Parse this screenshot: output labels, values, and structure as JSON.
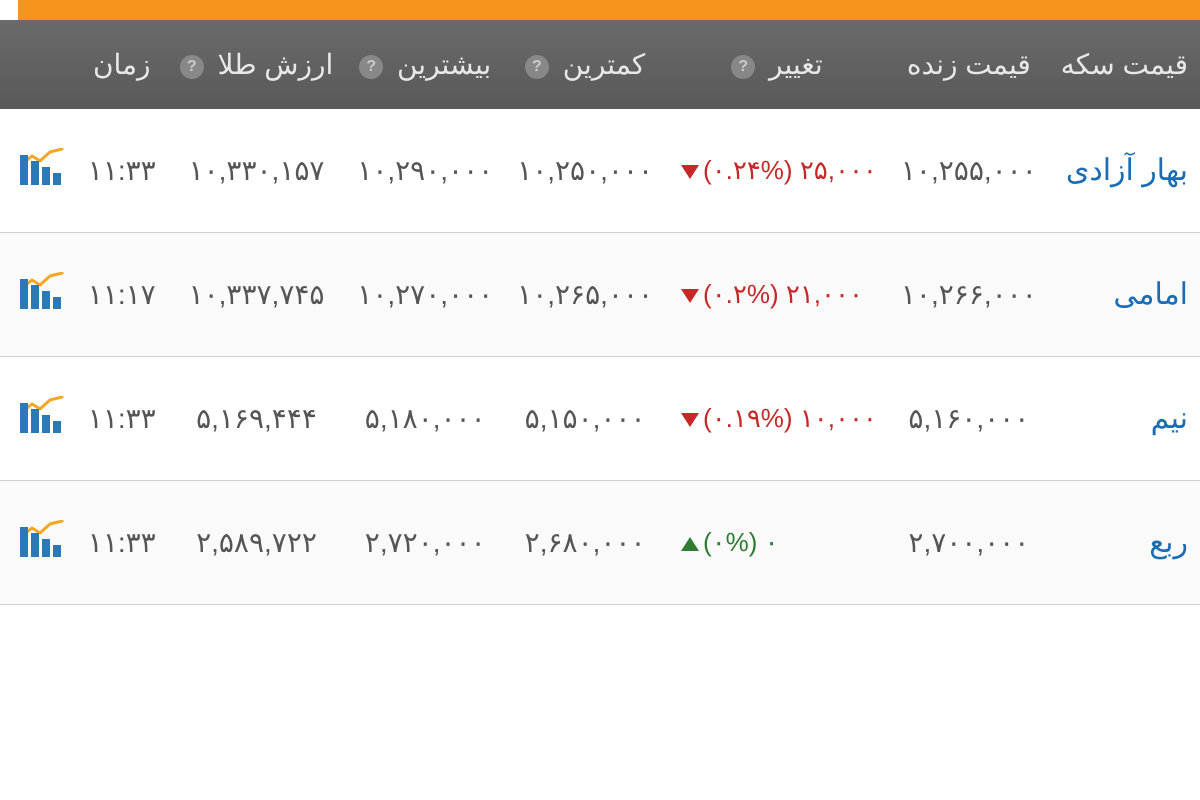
{
  "table": {
    "headers": {
      "name": "قیمت سکه",
      "live_price": "قیمت زنده",
      "change": "تغییر",
      "low": "کمترین",
      "high": "بیشترین",
      "gold_value": "ارزش طلا",
      "time": "زمان"
    },
    "rows": [
      {
        "name": "بهار آزادی",
        "live_price": "۱۰,۲۵۵,۰۰۰",
        "change_amount": "۲۵,۰۰۰",
        "change_percent": "(۰.۲۴%)",
        "direction": "down",
        "low": "۱۰,۲۵۰,۰۰۰",
        "high": "۱۰,۲۹۰,۰۰۰",
        "gold_value": "۱۰,۳۳۰,۱۵۷",
        "time": "۱۱:۳۳"
      },
      {
        "name": "امامی",
        "live_price": "۱۰,۲۶۶,۰۰۰",
        "change_amount": "۲۱,۰۰۰",
        "change_percent": "(۰.۲%)",
        "direction": "down",
        "low": "۱۰,۲۶۵,۰۰۰",
        "high": "۱۰,۲۷۰,۰۰۰",
        "gold_value": "۱۰,۳۳۷,۷۴۵",
        "time": "۱۱:۱۷"
      },
      {
        "name": "نیم",
        "live_price": "۵,۱۶۰,۰۰۰",
        "change_amount": "۱۰,۰۰۰",
        "change_percent": "(۰.۱۹%)",
        "direction": "down",
        "low": "۵,۱۵۰,۰۰۰",
        "high": "۵,۱۸۰,۰۰۰",
        "gold_value": "۵,۱۶۹,۴۴۴",
        "time": "۱۱:۳۳"
      },
      {
        "name": "ربع",
        "live_price": "۲,۷۰۰,۰۰۰",
        "change_amount": "۰",
        "change_percent": "(۰%)",
        "direction": "up",
        "low": "۲,۶۸۰,۰۰۰",
        "high": "۲,۷۲۰,۰۰۰",
        "gold_value": "۲,۵۸۹,۷۲۲",
        "time": "۱۱:۳۳"
      }
    ]
  },
  "colors": {
    "accent": "#f7941d",
    "header_bg": "#616161",
    "link": "#1a6db3",
    "down": "#c62828",
    "up": "#2e7d32",
    "chart_bar": "#2a7ab8",
    "chart_line": "#f5a623"
  }
}
